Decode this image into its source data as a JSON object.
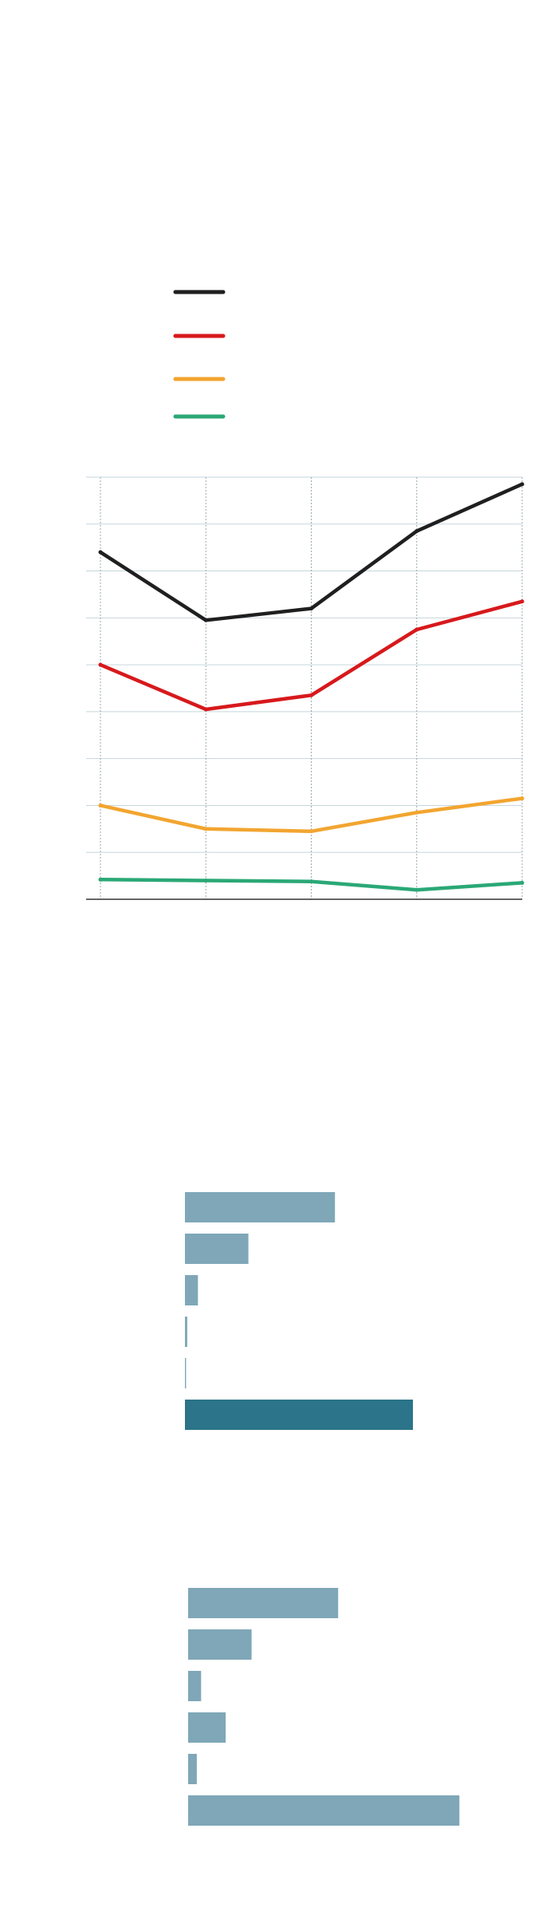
{
  "colors": {
    "grid": "#c7d6dc",
    "vgrid": "#9aa9b1",
    "axis": "#333333",
    "bar_light": "#7fa7b8",
    "bar_dark": "#2b7489"
  },
  "chart_data": [
    {
      "type": "line",
      "x": [
        1,
        2,
        3,
        4,
        5
      ],
      "ylim": [
        0,
        9
      ],
      "grid": true,
      "legend": "top-left",
      "series": [
        {
          "color": "#1f1f1f",
          "values": [
            7.4,
            5.95,
            6.2,
            7.85,
            8.85
          ]
        },
        {
          "color": "#d7191c",
          "values": [
            5.0,
            4.05,
            4.35,
            5.75,
            6.35
          ]
        },
        {
          "color": "#f2a530",
          "values": [
            2.0,
            1.5,
            1.45,
            1.85,
            2.15
          ]
        },
        {
          "color": "#2aa876",
          "values": [
            0.42,
            0.4,
            0.38,
            0.2,
            0.35
          ]
        }
      ]
    },
    {
      "type": "bar",
      "orientation": "horizontal",
      "values": [
        52,
        22,
        4.5,
        0.8,
        0.4,
        79
      ],
      "colors": [
        "#7fa7b8",
        "#7fa7b8",
        "#7fa7b8",
        "#7fa7b8",
        "#7fa7b8",
        "#2b7489"
      ]
    },
    {
      "type": "bar",
      "orientation": "horizontal",
      "values": [
        52,
        22,
        4.5,
        13,
        3,
        94
      ],
      "colors": [
        "#7fa7b8",
        "#7fa7b8",
        "#7fa7b8",
        "#7fa7b8",
        "#7fa7b8",
        "#7fa7b8"
      ]
    }
  ]
}
